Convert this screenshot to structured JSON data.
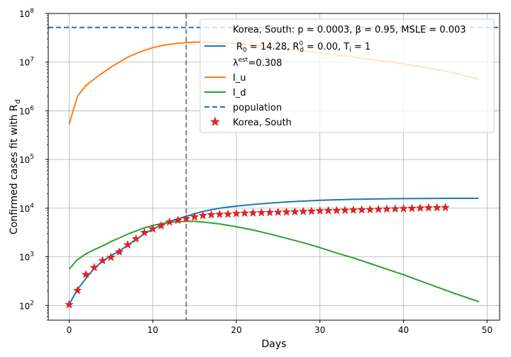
{
  "chart_data": {
    "type": "line",
    "xlabel": "Days",
    "ylabel_main": "Confirmed cases fit with R",
    "ylabel_sub": "d",
    "xlim": [
      -2.5,
      51.5
    ],
    "ylim": [
      50,
      100000000
    ],
    "y_scale": "log",
    "grid": true,
    "x_ticks": [
      0,
      10,
      20,
      30,
      40,
      50
    ],
    "y_ticks": [
      {
        "value": 100,
        "base": "10",
        "exp": "2"
      },
      {
        "value": 1000,
        "base": "10",
        "exp": "3"
      },
      {
        "value": 10000,
        "base": "10",
        "exp": "4"
      },
      {
        "value": 100000,
        "base": "10",
        "exp": "5"
      },
      {
        "value": 1000000,
        "base": "10",
        "exp": "6"
      },
      {
        "value": 10000000,
        "base": "10",
        "exp": "7"
      },
      {
        "value": 100000000,
        "base": "10",
        "exp": "8"
      }
    ],
    "vline": {
      "x": 14,
      "color": "#7f7f7f"
    },
    "population": {
      "name": "population",
      "value": 51700000,
      "color": "#1f77b4"
    },
    "series": [
      {
        "name": "fit",
        "color": "#1f77b4",
        "x": [
          0,
          1,
          2,
          3,
          4,
          5,
          6,
          7,
          8,
          9,
          10,
          11,
          12,
          13,
          14,
          15,
          16,
          17,
          18,
          19,
          20,
          22,
          24,
          26,
          28,
          30,
          32,
          34,
          36,
          38,
          40,
          42,
          44,
          46,
          49
        ],
        "y": [
          105,
          215,
          360,
          580,
          820,
          1050,
          1320,
          1720,
          2280,
          2950,
          3700,
          4500,
          5300,
          6050,
          6800,
          7700,
          8550,
          9300,
          9950,
          10500,
          11000,
          11900,
          12700,
          13400,
          14000,
          14500,
          14900,
          15200,
          15400,
          15600,
          15700,
          15800,
          15850,
          15900,
          15950
        ]
      },
      {
        "name": "I_u",
        "color": "#ff7f0e",
        "x": [
          0,
          1,
          2,
          3,
          4,
          5,
          6,
          7,
          8,
          9,
          10,
          11,
          12,
          13,
          14,
          15,
          16,
          17,
          18,
          20,
          22,
          25,
          28,
          31,
          34,
          37,
          40,
          43,
          46,
          49
        ],
        "y": [
          530000,
          2000000,
          3300000,
          4500000,
          6000000,
          7900000,
          10000000,
          12600000,
          15000000,
          17500000,
          19800000,
          21700000,
          23200000,
          24400000,
          25200000,
          25700000,
          25800000,
          25500000,
          25000000,
          23800000,
          22000000,
          19500000,
          17000000,
          14800000,
          12700000,
          10800000,
          9200000,
          7600000,
          6000000,
          4450000
        ]
      },
      {
        "name": "I_d",
        "color": "#2ca02c",
        "x": [
          0,
          1,
          2,
          3,
          4,
          5,
          6,
          7,
          8,
          9,
          10,
          11,
          12,
          13,
          14,
          15,
          16,
          18,
          20,
          22,
          24,
          26,
          28,
          30,
          32,
          34,
          36,
          38,
          40,
          42,
          44,
          46,
          49
        ],
        "y": [
          560,
          880,
          1150,
          1400,
          1680,
          2050,
          2450,
          2920,
          3400,
          3950,
          4400,
          4800,
          5100,
          5300,
          5380,
          5350,
          5200,
          4750,
          4150,
          3550,
          2950,
          2400,
          1950,
          1550,
          1200,
          950,
          730,
          560,
          430,
          320,
          240,
          180,
          120
        ]
      }
    ],
    "observed": {
      "name": "Korea, South",
      "color": "#d62728",
      "x": [
        0,
        1,
        2,
        3,
        4,
        5,
        6,
        7,
        8,
        9,
        10,
        11,
        12,
        13,
        14,
        15,
        16,
        17,
        18,
        19,
        20,
        21,
        22,
        23,
        24,
        25,
        26,
        27,
        28,
        29,
        30,
        31,
        32,
        33,
        34,
        35,
        36,
        37,
        38,
        39,
        40,
        41,
        42,
        43,
        44,
        45
      ],
      "y": [
        104,
        204,
        433,
        602,
        833,
        977,
        1261,
        1766,
        2337,
        3150,
        3736,
        4335,
        5186,
        5621,
        6088,
        6593,
        7041,
        7313,
        7478,
        7513,
        7755,
        7869,
        7979,
        8086,
        8162,
        8236,
        8320,
        8413,
        8565,
        8652,
        8799,
        8897,
        8961,
        9037,
        9137,
        9241,
        9332,
        9478,
        9583,
        9661,
        9786,
        9887,
        10062,
        10156,
        10237,
        10284
      ]
    },
    "legend": {
      "placement": "upper right",
      "title_line": "Korea, South: p = 0.0003,  β =  0.95, MSLE = 0.003",
      "fit_line_a": "R",
      "fit_line_a_sub": "0",
      "fit_line_b": " = 14.28, R",
      "fit_line_b_sup": "0",
      "fit_line_b_sub": "d",
      "fit_line_c": " = 0.00, T",
      "fit_line_c_sub": "i",
      "fit_line_d": " = 1",
      "lambda_main": "λ",
      "lambda_sup": "est",
      "lambda_value": "=0.308",
      "entries": [
        "I_u",
        "I_d",
        "population",
        "Korea, South"
      ]
    }
  }
}
